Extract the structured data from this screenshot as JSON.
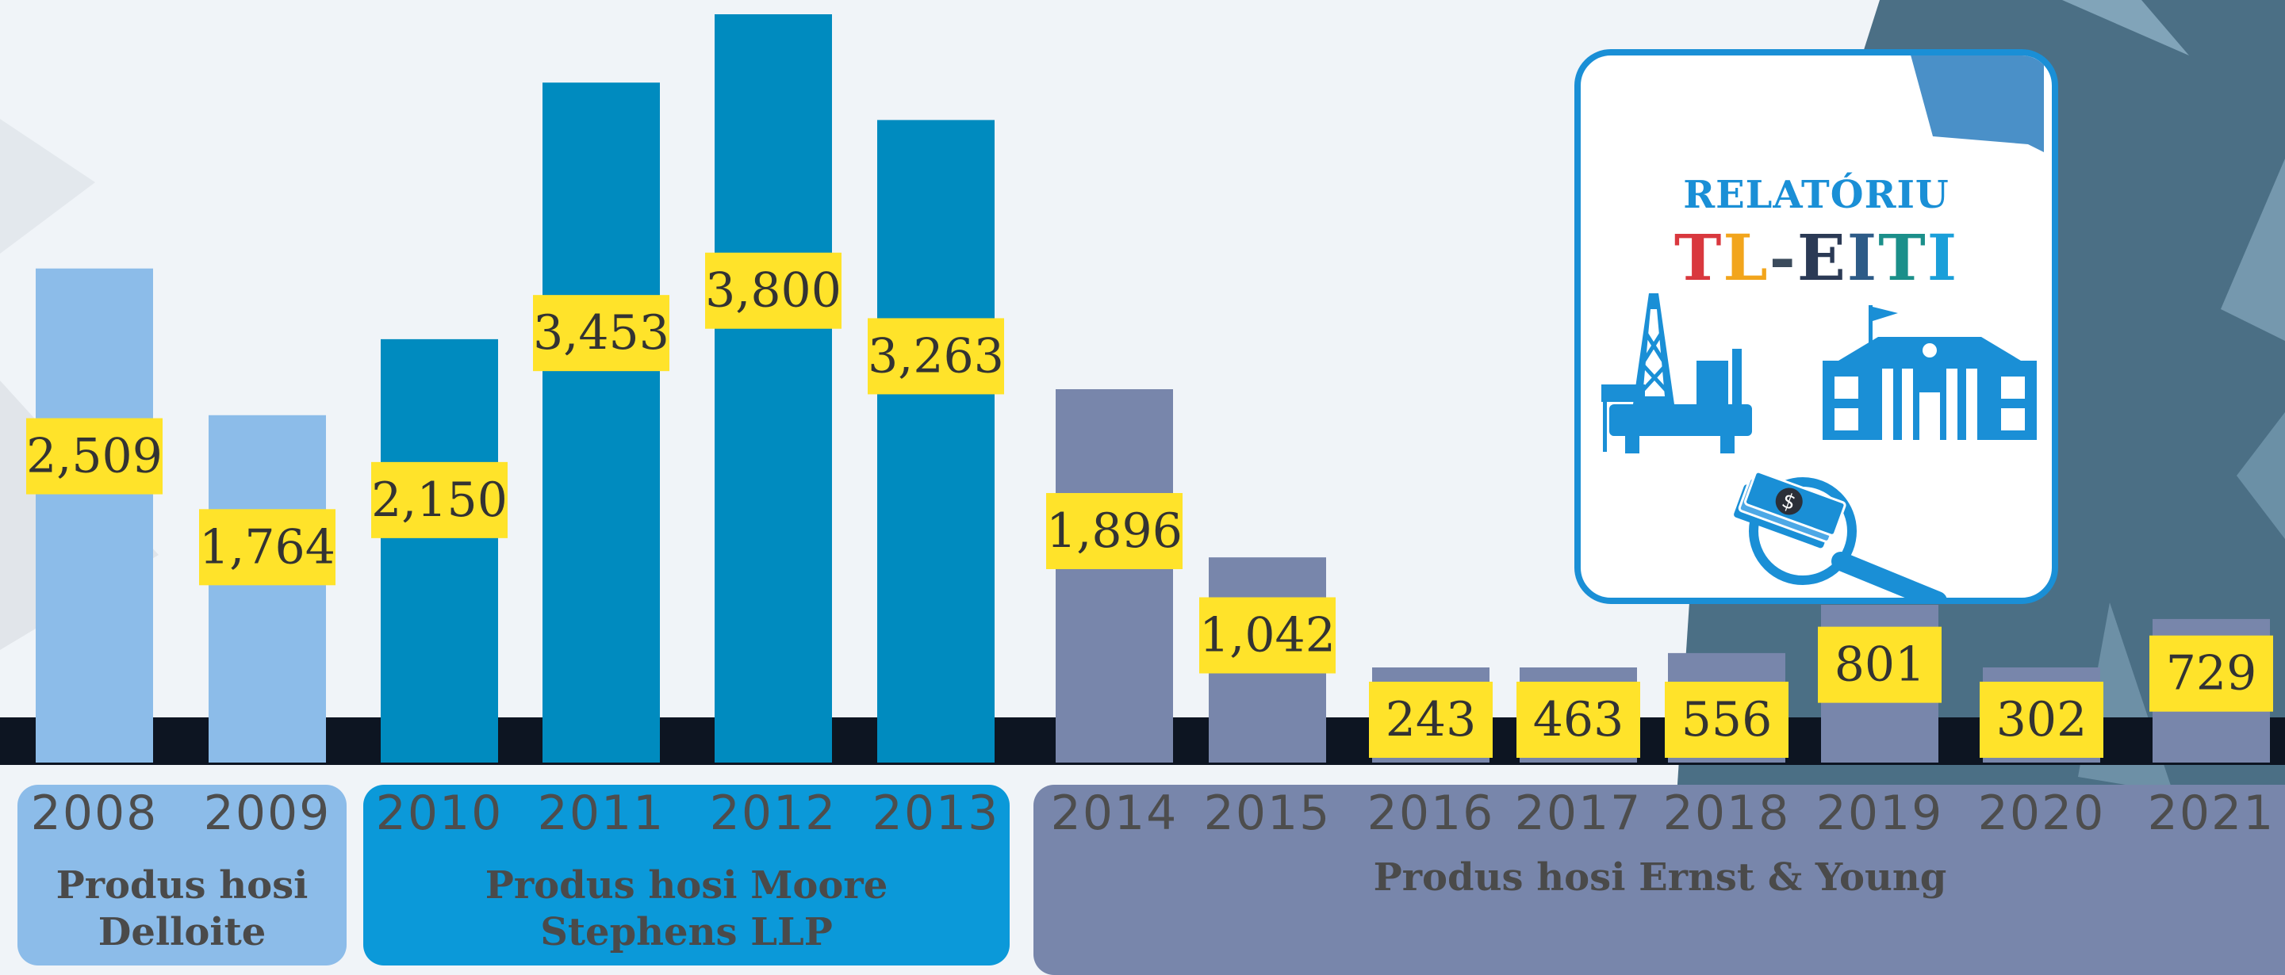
{
  "colors": {
    "background_light": "#f0f4f8",
    "background_dark": "#4b6f85",
    "baseline_band": "#0d1522",
    "deloitte": "#8cbce9",
    "moore": "#008bbf",
    "ey": "#7886ab",
    "label_box": "#ffe32a",
    "label_text": "#333333",
    "year_text": "#4d4d4d",
    "group_deloitte_bg": "#8cbce9",
    "group_moore_bg": "#0b99d9",
    "group_ey_bg": "#7886ab",
    "card_accent": "#1a8fd6"
  },
  "report_card": {
    "title": "RELATÓRIU",
    "brand": [
      {
        "text": "T",
        "color": "#d9383e"
      },
      {
        "text": "L",
        "color": "#f2a51c"
      },
      {
        "text": "-",
        "color": "#3b4b5c"
      },
      {
        "text": "E",
        "color": "#2b3a55"
      },
      {
        "text": "I",
        "color": "#2d5b87"
      },
      {
        "text": "T",
        "color": "#1b8f8a"
      },
      {
        "text": "I",
        "color": "#1a9fd9"
      }
    ],
    "icons": [
      "oil-rig-icon",
      "government-building-icon",
      "money-magnifier-icon"
    ]
  },
  "chart_data": {
    "type": "bar",
    "categories": [
      "2008",
      "2009",
      "2010",
      "2011",
      "2012",
      "2013",
      "2014",
      "2015",
      "2016",
      "2017",
      "2018",
      "2019",
      "2020",
      "2021"
    ],
    "values": [
      2509,
      1764,
      2150,
      3453,
      3800,
      3263,
      1896,
      1042,
      243,
      463,
      556,
      801,
      302,
      729
    ],
    "value_labels": [
      "2,509",
      "1,764",
      "2,150",
      "3,453",
      "3,800",
      "3,263",
      "1,896",
      "1,042",
      "243",
      "463",
      "556",
      "801",
      "302",
      "729"
    ],
    "groups": [
      {
        "name": "Produs hosi Delloite",
        "lines": [
          "Produs hosi",
          "Delloite"
        ],
        "categories": [
          "2008",
          "2009"
        ],
        "color": "#8cbce9"
      },
      {
        "name": "Produs hosi Moore Stephens LLP",
        "lines": [
          "Produs hosi Moore",
          "Stephens LLP"
        ],
        "categories": [
          "2010",
          "2011",
          "2012",
          "2013"
        ],
        "color": "#008bbf"
      },
      {
        "name": "Produs hosi Ernst & Young",
        "lines": [
          "Produs hosi Ernst & Young"
        ],
        "categories": [
          "2014",
          "2015",
          "2016",
          "2017",
          "2018",
          "2019",
          "2020",
          "2021"
        ],
        "color": "#7886ab"
      }
    ],
    "ylim": [
      0,
      3800
    ],
    "grid": false,
    "legend": "none",
    "title": "",
    "xlabel": "",
    "ylabel": ""
  }
}
